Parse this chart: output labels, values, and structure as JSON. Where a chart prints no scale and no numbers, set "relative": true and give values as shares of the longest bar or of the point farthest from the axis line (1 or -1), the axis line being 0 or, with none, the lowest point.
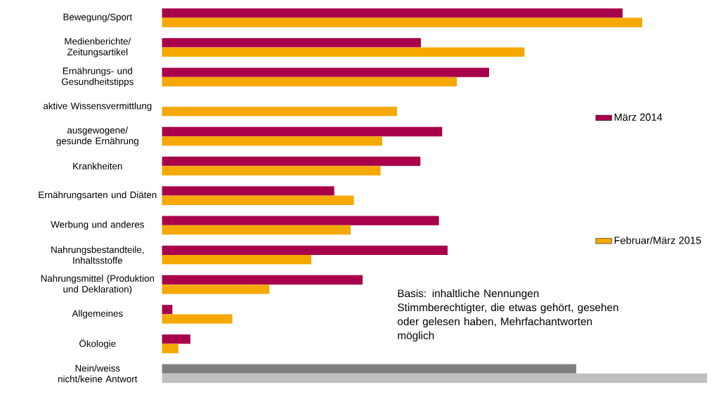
{
  "chart_data": {
    "type": "bar",
    "orientation": "horizontal",
    "relative": true,
    "legend": "right",
    "categories": [
      "Bewegung/Sport",
      "Medienberichte/ Zeitungsartikel",
      "Ernährungs- und Gesundheitstipps",
      "aktive Wissensvermittlung",
      "ausgewogene/ gesunde Ernährung",
      "Krankheiten",
      "Ernährungsarten und Diäten",
      "Werbung und anderes",
      "Nahrungsbestandteile, Inhaltsstoffe",
      "Nahrungsmittel (Produktion und Deklaration)",
      "Allgemeines",
      "Ökologie",
      "Nein/weiss nicht/keine Antwort"
    ],
    "series": [
      {
        "name": "März 2014",
        "color": "#a8004a",
        "colors": [
          "#a8004a",
          "#a8004a",
          "#a8004a",
          "#a8004a",
          "#a8004a",
          "#a8004a",
          "#a8004a",
          "#a8004a",
          "#a8004a",
          "#a8004a",
          "#a8004a",
          "#a8004a",
          "#7f7f7f"
        ],
        "values": [
          0.845,
          0.475,
          0.6,
          null,
          0.514,
          0.474,
          0.316,
          0.508,
          0.524,
          0.368,
          0.019,
          0.052,
          0.76
        ]
      },
      {
        "name": "Februar/März 2015",
        "color": "#f5a800",
        "colors": [
          "#f5a800",
          "#f5a800",
          "#f5a800",
          "#f5a800",
          "#f5a800",
          "#f5a800",
          "#f5a800",
          "#f5a800",
          "#f5a800",
          "#f5a800",
          "#f5a800",
          "#f5a800",
          "#bfbfbf"
        ],
        "values": [
          0.881,
          0.665,
          0.541,
          0.431,
          0.404,
          0.401,
          0.352,
          0.346,
          0.274,
          0.197,
          0.129,
          0.03,
          1.0
        ]
      }
    ],
    "annotations": [
      "Basis: inhaltliche Nennungen Stimmberechtigter, die etwas gehört, gesehen oder gelesen haben, Mehrfachantworten möglich"
    ]
  }
}
